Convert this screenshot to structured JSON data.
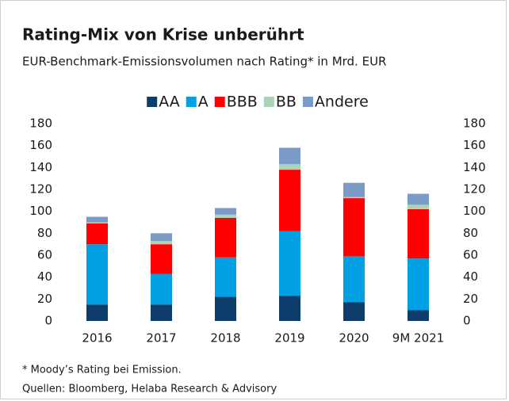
{
  "chart_data": {
    "type": "stacked_bar",
    "title": "Rating-Mix von Krise unberührt",
    "subtitle": "EUR-Benchmark-Emissionsvolumen nach Rating* in Mrd. EUR",
    "categories": [
      "2016",
      "2017",
      "2018",
      "2019",
      "2020",
      "9M 2021"
    ],
    "series": [
      {
        "name": "AA",
        "color": "#0e3d6b",
        "values": [
          15,
          15,
          22,
          23,
          17,
          10
        ]
      },
      {
        "name": "A",
        "color": "#00a0e3",
        "values": [
          55,
          28,
          36,
          59,
          42,
          47
        ]
      },
      {
        "name": "BBB",
        "color": "#ff0000",
        "values": [
          19,
          27,
          36,
          56,
          53,
          45
        ]
      },
      {
        "name": "BB",
        "color": "#a9d4b8",
        "values": [
          1,
          3,
          3,
          5,
          1,
          4
        ]
      },
      {
        "name": "Andere",
        "color": "#7b9bc7",
        "values": [
          5,
          7,
          6,
          15,
          13,
          10
        ]
      }
    ],
    "ylim": [
      0,
      180
    ],
    "yticks": [
      0,
      20,
      40,
      60,
      80,
      100,
      120,
      140,
      160,
      180
    ],
    "y2lim": [
      0,
      180
    ],
    "y2ticks": [
      0,
      20,
      40,
      60,
      80,
      100,
      120,
      140,
      160,
      180
    ],
    "grid": false,
    "legend": "top",
    "footnotes": [
      "* Moody’s Rating bei Emission.",
      "Quellen: Bloomberg, Helaba Research & Advisory"
    ]
  }
}
